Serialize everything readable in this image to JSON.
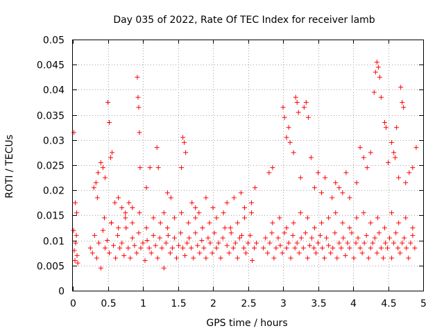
{
  "chart_data": {
    "type": "scatter",
    "title": "Day 035 of 2022, Rate Of TEC Index for receiver lamb",
    "xlabel": "GPS time / hours",
    "ylabel": "ROTI / TECUs",
    "xlim": [
      0,
      5
    ],
    "ylim": [
      0,
      0.05
    ],
    "grid": true,
    "marker": "plus",
    "color": "#ff0000",
    "x_ticks": [
      {
        "value": 0,
        "label": "0"
      },
      {
        "value": 0.5,
        "label": "0.5"
      },
      {
        "value": 1,
        "label": "1"
      },
      {
        "value": 1.5,
        "label": "1.5"
      },
      {
        "value": 2,
        "label": "2"
      },
      {
        "value": 2.5,
        "label": "2.5"
      },
      {
        "value": 3,
        "label": "3"
      },
      {
        "value": 3.5,
        "label": "3.5"
      },
      {
        "value": 4,
        "label": "4"
      },
      {
        "value": 4.5,
        "label": "4.5"
      },
      {
        "value": 5,
        "label": "5"
      }
    ],
    "y_ticks": [
      {
        "value": 0,
        "label": "0"
      },
      {
        "value": 0.005,
        "label": "0.005"
      },
      {
        "value": 0.01,
        "label": "0.01"
      },
      {
        "value": 0.015,
        "label": "0.015"
      },
      {
        "value": 0.02,
        "label": "0.02"
      },
      {
        "value": 0.025,
        "label": "0.025"
      },
      {
        "value": 0.03,
        "label": "0.03"
      },
      {
        "value": 0.035,
        "label": "0.035"
      },
      {
        "value": 0.04,
        "label": "0.04"
      },
      {
        "value": 0.045,
        "label": "0.045"
      },
      {
        "value": 0.05,
        "label": "0.05"
      }
    ],
    "series": [
      {
        "name": "ROTI",
        "x": [
          0.01,
          0.02,
          0.03,
          0.04,
          0.05,
          0.06,
          0.07,
          0.25,
          0.28,
          0.31,
          0.34,
          0.37,
          0.4,
          0.43,
          0.46,
          0.49,
          0.52,
          0.55,
          0.58,
          0.61,
          0.64,
          0.67,
          0.7,
          0.73,
          0.76,
          0.79,
          0.82,
          0.85,
          0.88,
          0.91,
          0.94,
          0.97,
          1.0,
          1.03,
          1.06,
          1.09,
          1.12,
          1.15,
          1.18,
          1.21,
          1.24,
          1.27,
          1.3,
          1.33,
          1.36,
          1.39,
          1.42,
          1.45,
          1.48,
          1.51,
          1.54,
          1.57,
          1.6,
          1.63,
          1.66,
          1.69,
          1.72,
          1.75,
          1.78,
          1.81,
          1.84,
          1.87,
          1.9,
          1.93,
          1.96,
          1.99,
          2.02,
          2.05,
          2.08,
          2.11,
          2.14,
          2.17,
          2.2,
          2.23,
          2.26,
          2.29,
          2.32,
          2.35,
          2.38,
          2.41,
          2.44,
          2.47,
          2.5,
          2.53,
          2.56,
          2.59,
          2.62,
          2.72,
          2.75,
          2.78,
          2.81,
          2.84,
          2.87,
          2.9,
          2.93,
          2.96,
          2.99,
          3.02,
          3.05,
          3.08,
          3.11,
          3.14,
          3.17,
          3.2,
          3.23,
          3.26,
          3.29,
          3.32,
          3.35,
          3.38,
          3.41,
          3.44,
          3.47,
          3.5,
          3.53,
          3.56,
          3.59,
          3.62,
          3.65,
          3.68,
          3.71,
          3.74,
          3.77,
          3.8,
          3.83,
          3.86,
          3.89,
          3.92,
          3.95,
          3.98,
          4.01,
          4.04,
          4.07,
          4.1,
          4.13,
          4.16,
          4.19,
          4.22,
          4.25,
          4.28,
          4.31,
          4.34,
          4.37,
          4.4,
          4.43,
          4.46,
          4.49,
          4.52,
          4.55,
          4.58,
          4.61,
          4.64,
          4.67,
          4.7,
          4.73,
          4.76,
          4.79,
          4.82,
          4.85,
          4.88,
          0.015,
          0.035,
          0.055,
          0.5,
          0.52,
          0.54,
          0.56,
          0.92,
          0.93,
          0.94,
          0.95,
          0.96,
          1.2,
          1.22,
          1.55,
          1.57,
          1.59,
          1.61,
          3.0,
          3.02,
          3.05,
          3.08,
          3.18,
          3.2,
          3.22,
          3.3,
          3.33,
          3.36,
          3.4,
          4.3,
          4.32,
          4.34,
          4.36,
          4.38,
          4.4,
          4.45,
          4.47,
          4.55,
          4.58,
          4.62,
          4.68,
          4.7,
          4.72,
          4.9,
          0.3,
          0.33,
          0.36,
          0.4,
          0.43,
          0.46,
          0.6,
          0.65,
          0.7,
          0.75,
          0.8,
          0.85,
          1.05,
          1.1,
          1.3,
          1.35,
          1.4,
          1.7,
          1.75,
          1.8,
          1.9,
          2.0,
          2.2,
          2.3,
          2.4,
          2.45,
          2.55,
          2.6,
          2.8,
          2.85,
          3.1,
          3.15,
          3.25,
          3.45,
          3.5,
          3.55,
          3.6,
          3.7,
          3.75,
          3.8,
          3.85,
          3.9,
          3.95,
          4.05,
          4.1,
          4.15,
          4.2,
          4.25,
          4.5,
          4.6,
          4.65,
          4.75,
          4.8,
          4.85,
          0.35,
          0.45,
          0.55,
          0.65,
          0.75,
          0.85,
          0.95,
          1.05,
          1.15,
          1.25,
          1.35,
          1.45,
          1.55,
          1.65,
          1.75,
          1.85,
          1.95,
          2.05,
          2.15,
          2.25,
          2.35,
          2.45,
          2.55,
          2.85,
          2.95,
          3.05,
          3.15,
          3.25,
          3.35,
          3.45,
          3.55,
          3.65,
          3.75,
          3.85,
          3.95,
          4.05,
          4.15,
          4.25,
          4.35,
          4.45,
          4.55,
          4.65,
          4.75,
          4.85
        ],
        "y": [
          0.012,
          0.008,
          0.006,
          0.0095,
          0.011,
          0.007,
          0.0055,
          0.0085,
          0.0075,
          0.011,
          0.0065,
          0.0095,
          0.0045,
          0.012,
          0.0085,
          0.01,
          0.0075,
          0.0135,
          0.009,
          0.0065,
          0.011,
          0.0085,
          0.0095,
          0.007,
          0.0125,
          0.0085,
          0.0065,
          0.0105,
          0.009,
          0.0075,
          0.0115,
          0.0085,
          0.0095,
          0.006,
          0.01,
          0.0085,
          0.0075,
          0.011,
          0.009,
          0.0065,
          0.0105,
          0.0085,
          0.0045,
          0.0095,
          0.011,
          0.0075,
          0.0085,
          0.0105,
          0.0065,
          0.009,
          0.0115,
          0.0085,
          0.007,
          0.0095,
          0.0105,
          0.0085,
          0.0065,
          0.0115,
          0.009,
          0.0075,
          0.01,
          0.0085,
          0.0065,
          0.0105,
          0.0095,
          0.0075,
          0.0115,
          0.0085,
          0.0095,
          0.0065,
          0.0105,
          0.0125,
          0.009,
          0.0075,
          0.0115,
          0.0085,
          0.0095,
          0.0065,
          0.0105,
          0.011,
          0.0085,
          0.0075,
          0.0095,
          0.011,
          0.006,
          0.0085,
          0.0095,
          0.0085,
          0.0105,
          0.0075,
          0.0095,
          0.0115,
          0.0065,
          0.0085,
          0.0105,
          0.009,
          0.0075,
          0.0115,
          0.0085,
          0.0095,
          0.0065,
          0.011,
          0.0085,
          0.0095,
          0.0075,
          0.0105,
          0.0085,
          0.0115,
          0.0065,
          0.009,
          0.0105,
          0.0085,
          0.0075,
          0.0095,
          0.011,
          0.0085,
          0.0065,
          0.0105,
          0.009,
          0.0075,
          0.0085,
          0.0115,
          0.0065,
          0.0095,
          0.0085,
          0.0105,
          0.007,
          0.0095,
          0.0085,
          0.0115,
          0.0065,
          0.0095,
          0.0105,
          0.0085,
          0.0075,
          0.0095,
          0.011,
          0.0065,
          0.0085,
          0.0095,
          0.0105,
          0.0075,
          0.0115,
          0.0085,
          0.0065,
          0.0095,
          0.0085,
          0.0105,
          0.0065,
          0.0095,
          0.0115,
          0.0085,
          0.0075,
          0.0095,
          0.0105,
          0.0085,
          0.0065,
          0.0095,
          0.011,
          0.0085,
          0.0315,
          0.0175,
          0.0155,
          0.0375,
          0.0335,
          0.0265,
          0.0275,
          0.0425,
          0.0385,
          0.0365,
          0.0315,
          0.0245,
          0.0285,
          0.0245,
          0.0245,
          0.0305,
          0.0295,
          0.0275,
          0.0365,
          0.0345,
          0.0305,
          0.0325,
          0.0385,
          0.0375,
          0.0355,
          0.0365,
          0.0375,
          0.0345,
          0.0265,
          0.0395,
          0.0435,
          0.0455,
          0.0445,
          0.0425,
          0.0385,
          0.0335,
          0.0325,
          0.0295,
          0.0275,
          0.0325,
          0.0405,
          0.0375,
          0.0365,
          0.0285,
          0.0205,
          0.0215,
          0.0235,
          0.0255,
          0.0245,
          0.0225,
          0.0175,
          0.0185,
          0.0165,
          0.0155,
          0.0175,
          0.0165,
          0.0205,
          0.0245,
          0.0155,
          0.0195,
          0.0185,
          0.0175,
          0.0165,
          0.0155,
          0.0185,
          0.0165,
          0.0175,
          0.0185,
          0.0195,
          0.0165,
          0.0175,
          0.0205,
          0.0235,
          0.0245,
          0.0295,
          0.0275,
          0.0225,
          0.0205,
          0.0235,
          0.0195,
          0.0225,
          0.0185,
          0.0215,
          0.0205,
          0.0195,
          0.0235,
          0.0185,
          0.0215,
          0.0285,
          0.0265,
          0.0245,
          0.0275,
          0.0255,
          0.0265,
          0.0225,
          0.0215,
          0.0235,
          0.0245,
          0.0185,
          0.0145,
          0.0135,
          0.0125,
          0.0145,
          0.0135,
          0.0155,
          0.0125,
          0.0145,
          0.0135,
          0.0125,
          0.0145,
          0.0155,
          0.0135,
          0.0145,
          0.0125,
          0.0135,
          0.0145,
          0.0155,
          0.0125,
          0.0135,
          0.0145,
          0.0155,
          0.0135,
          0.0145,
          0.0125,
          0.0135,
          0.0155,
          0.0145,
          0.0125,
          0.0135,
          0.0145,
          0.0155,
          0.0135,
          0.0125,
          0.0145,
          0.0155,
          0.0135,
          0.0145,
          0.0125,
          0.0155,
          0.0135,
          0.0145,
          0.0125
        ]
      }
    ]
  }
}
